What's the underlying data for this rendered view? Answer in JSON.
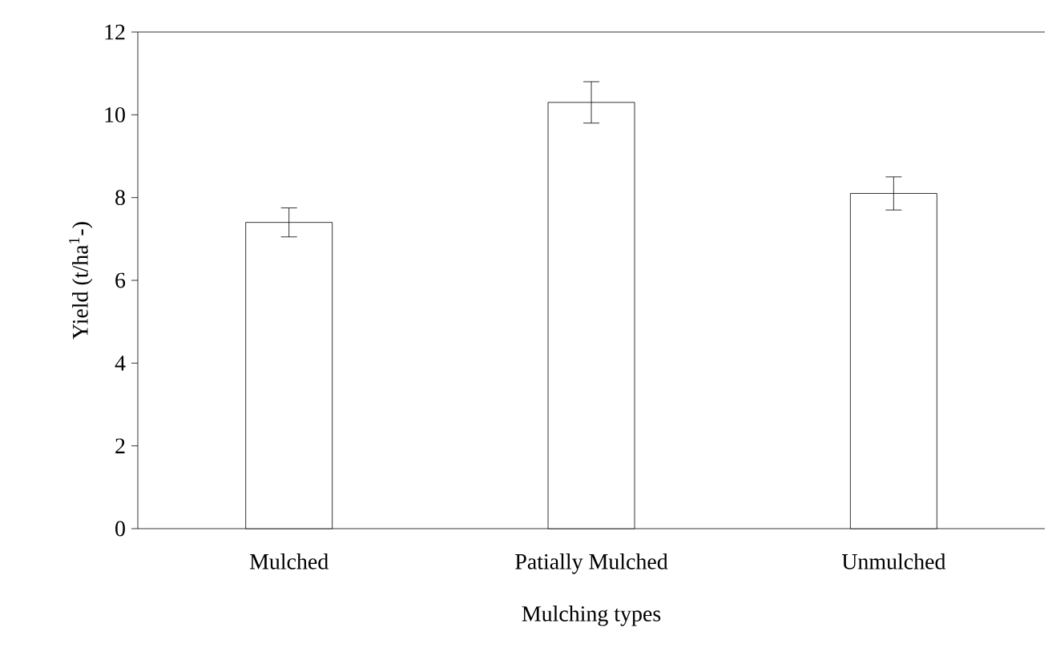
{
  "chart_data": {
    "type": "bar",
    "xlabel": "Mulching types",
    "ylabel": "Yield (t/ha$^{1}$-)",
    "categories": [
      "Mulched",
      "Patially Mulched",
      "Unmulched"
    ],
    "values": [
      7.4,
      10.3,
      8.1
    ],
    "errors": [
      0.35,
      0.5,
      0.4
    ],
    "color": "#ffffff",
    "ylim": [
      0,
      12
    ],
    "yticks": [
      0,
      2,
      4,
      6,
      8,
      10,
      12
    ],
    "grid": false
  }
}
